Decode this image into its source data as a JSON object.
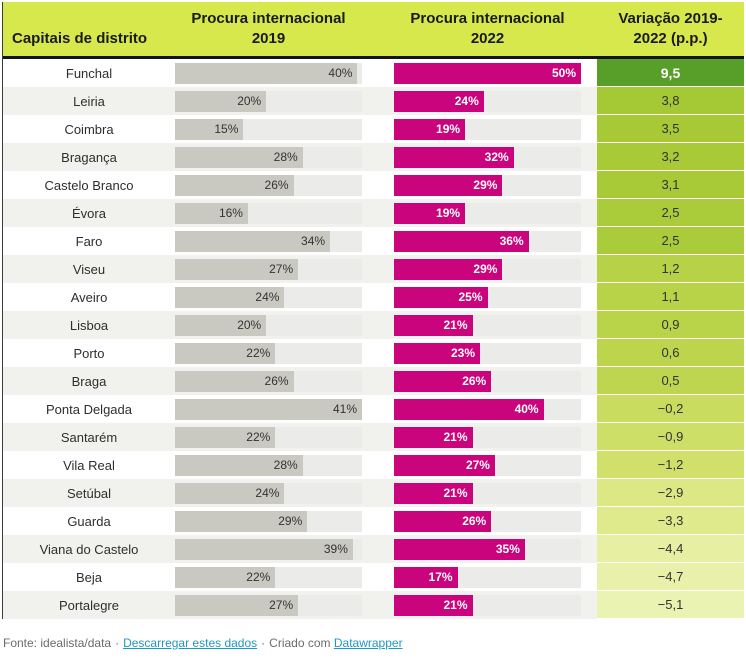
{
  "header": {
    "col_names": "Capitais de distrito",
    "col_2019_line1": "Procura internacional",
    "col_2019_line2": "2019",
    "col_2022_line1": "Procura internacional",
    "col_2022_line2": "2022",
    "col_diff_line1": "Variação 2019-",
    "col_diff_line2": "2022 (p.p.)"
  },
  "colors": {
    "header_bg": "#d7e84c",
    "header_border": "#141414",
    "bar_2019_fill": "#c9c9c1",
    "bar_track": "#ebebe9",
    "bar_2022_fill": "#c9047c",
    "row_stripe": "#f1f1ee",
    "row_plain": "#ffffff",
    "link": "#1f97c6",
    "footer_text": "#6b6b6b"
  },
  "bar_scale": {
    "max_2019": 41,
    "max_2022": 50
  },
  "rows": [
    {
      "name": "Funchal",
      "v2019": 40,
      "label2019": "40%",
      "v2022": 50,
      "label2022": "50%",
      "diff": "9,5",
      "diff_bg": "#579f28",
      "diff_fg": "#ffffff",
      "diff_bold": true
    },
    {
      "name": "Leiria",
      "v2019": 20,
      "label2019": "20%",
      "v2022": 24,
      "label2022": "24%",
      "diff": "3,8",
      "diff_bg": "#a5c934",
      "diff_fg": "#333333",
      "diff_bold": false
    },
    {
      "name": "Coimbra",
      "v2019": 15,
      "label2019": "15%",
      "v2022": 19,
      "label2022": "19%",
      "diff": "3,5",
      "diff_bg": "#a6c935",
      "diff_fg": "#333333",
      "diff_bold": false
    },
    {
      "name": "Bragança",
      "v2019": 28,
      "label2019": "28%",
      "v2022": 32,
      "label2022": "32%",
      "diff": "3,2",
      "diff_bg": "#a7ca36",
      "diff_fg": "#333333",
      "diff_bold": false
    },
    {
      "name": "Castelo Branco",
      "v2019": 26,
      "label2019": "26%",
      "v2022": 29,
      "label2022": "29%",
      "diff": "3,1",
      "diff_bg": "#a8ca37",
      "diff_fg": "#333333",
      "diff_bold": false
    },
    {
      "name": "Évora",
      "v2019": 16,
      "label2019": "16%",
      "v2022": 19,
      "label2022": "19%",
      "diff": "2,5",
      "diff_bg": "#abcc3a",
      "diff_fg": "#333333",
      "diff_bold": false
    },
    {
      "name": "Faro",
      "v2019": 34,
      "label2019": "34%",
      "v2022": 36,
      "label2022": "36%",
      "diff": "2,5",
      "diff_bg": "#abcc3a",
      "diff_fg": "#333333",
      "diff_bold": false
    },
    {
      "name": "Viseu",
      "v2019": 27,
      "label2019": "27%",
      "v2022": 29,
      "label2022": "29%",
      "diff": "1,2",
      "diff_bg": "#b7d246",
      "diff_fg": "#333333",
      "diff_bold": false
    },
    {
      "name": "Aveiro",
      "v2019": 24,
      "label2019": "24%",
      "v2022": 25,
      "label2022": "25%",
      "diff": "1,1",
      "diff_bg": "#b8d347",
      "diff_fg": "#333333",
      "diff_bold": false
    },
    {
      "name": "Lisboa",
      "v2019": 20,
      "label2019": "20%",
      "v2022": 21,
      "label2022": "21%",
      "diff": "0,9",
      "diff_bg": "#bad44a",
      "diff_fg": "#333333",
      "diff_bold": false
    },
    {
      "name": "Porto",
      "v2019": 22,
      "label2019": "22%",
      "v2022": 23,
      "label2022": "23%",
      "diff": "0,6",
      "diff_bg": "#bdd54d",
      "diff_fg": "#333333",
      "diff_bold": false
    },
    {
      "name": "Braga",
      "v2019": 26,
      "label2019": "26%",
      "v2022": 26,
      "label2022": "26%",
      "diff": "0,5",
      "diff_bg": "#bed64f",
      "diff_fg": "#333333",
      "diff_bold": false
    },
    {
      "name": "Ponta Delgada",
      "v2019": 41,
      "label2019": "41%",
      "v2022": 40,
      "label2022": "40%",
      "diff": "−0,2",
      "diff_bg": "#c9dc5f",
      "diff_fg": "#333333",
      "diff_bold": false
    },
    {
      "name": "Santarém",
      "v2019": 22,
      "label2019": "22%",
      "v2022": 21,
      "label2022": "21%",
      "diff": "−0,9",
      "diff_bg": "#cedf67",
      "diff_fg": "#333333",
      "diff_bold": false
    },
    {
      "name": "Vila Real",
      "v2019": 28,
      "label2019": "28%",
      "v2022": 27,
      "label2022": "27%",
      "diff": "−1,2",
      "diff_bg": "#d0e06b",
      "diff_fg": "#333333",
      "diff_bold": false
    },
    {
      "name": "Setúbal",
      "v2019": 24,
      "label2019": "24%",
      "v2022": 21,
      "label2022": "21%",
      "diff": "−2,9",
      "diff_bg": "#dbe884",
      "diff_fg": "#333333",
      "diff_bold": false
    },
    {
      "name": "Guarda",
      "v2019": 29,
      "label2019": "29%",
      "v2022": 26,
      "label2022": "26%",
      "diff": "−3,3",
      "diff_bg": "#deea8c",
      "diff_fg": "#333333",
      "diff_bold": false
    },
    {
      "name": "Viana do Castelo",
      "v2019": 39,
      "label2019": "39%",
      "v2022": 35,
      "label2022": "35%",
      "diff": "−4,4",
      "diff_bg": "#e6efa2",
      "diff_fg": "#333333",
      "diff_bold": false
    },
    {
      "name": "Beja",
      "v2019": 22,
      "label2019": "22%",
      "v2022": 17,
      "label2022": "17%",
      "diff": "−4,7",
      "diff_bg": "#e8f0aa",
      "diff_fg": "#333333",
      "diff_bold": false
    },
    {
      "name": "Portalegre",
      "v2019": 27,
      "label2019": "27%",
      "v2022": 21,
      "label2022": "21%",
      "diff": "−5,1",
      "diff_bg": "#ebf3b3",
      "diff_fg": "#333333",
      "diff_bold": false
    }
  ],
  "footer": {
    "source": "Fonte: idealista/data",
    "separator": "·",
    "download_label": "Descarregar estes dados",
    "created_with": "Criado com",
    "datawrapper_label": "Datawrapper"
  },
  "chart_data": {
    "type": "table",
    "title": "",
    "row_header": "Capitais de distrito",
    "categories": [
      "Funchal",
      "Leiria",
      "Coimbra",
      "Bragança",
      "Castelo Branco",
      "Évora",
      "Faro",
      "Viseu",
      "Aveiro",
      "Lisboa",
      "Porto",
      "Braga",
      "Ponta Delgada",
      "Santarém",
      "Vila Real",
      "Setúbal",
      "Guarda",
      "Viana do Castelo",
      "Beja",
      "Portalegre"
    ],
    "series": [
      {
        "name": "Procura internacional 2019",
        "unit": "%",
        "render": "bar",
        "bar_color": "#c9c9c1",
        "axis_max": 41,
        "values": [
          40,
          20,
          15,
          28,
          26,
          16,
          34,
          27,
          24,
          20,
          22,
          26,
          41,
          22,
          28,
          24,
          29,
          39,
          22,
          27
        ]
      },
      {
        "name": "Procura internacional 2022",
        "unit": "%",
        "render": "bar",
        "bar_color": "#c9047c",
        "axis_max": 50,
        "values": [
          50,
          24,
          19,
          32,
          29,
          19,
          36,
          29,
          25,
          21,
          23,
          26,
          40,
          21,
          27,
          21,
          26,
          35,
          17,
          21
        ]
      },
      {
        "name": "Variação 2019-2022 (p.p.)",
        "render": "heatmap",
        "colormap": "green-to-pale",
        "values": [
          9.5,
          3.8,
          3.5,
          3.2,
          3.1,
          2.5,
          2.5,
          1.2,
          1.1,
          0.9,
          0.6,
          0.5,
          -0.2,
          -0.9,
          -1.2,
          -2.9,
          -3.3,
          -4.4,
          -4.7,
          -5.1
        ]
      }
    ],
    "legend_position": "none",
    "grid": false
  }
}
